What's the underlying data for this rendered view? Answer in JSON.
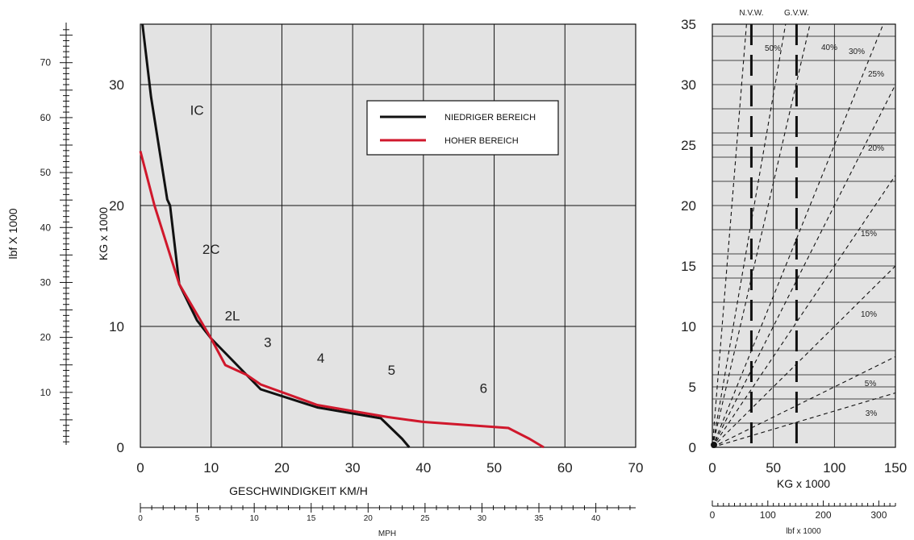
{
  "chart_data": [
    {
      "type": "line",
      "xlabel": "GESCHWINDIGKEIT KM/H",
      "ylabel": "KG x 1000",
      "xlim": [
        0,
        70
      ],
      "ylim": [
        0,
        35
      ],
      "x_ticks": [
        "0",
        "10",
        "20",
        "30",
        "40",
        "50",
        "60",
        "70"
      ],
      "y_ticks": [
        "0",
        "10",
        "20",
        "30"
      ],
      "grid": true,
      "legend_position": "top-right",
      "secondary_y": {
        "label": "lbf X 1000",
        "ticks": [
          "10",
          "20",
          "30",
          "40",
          "50",
          "60",
          "70"
        ],
        "range": [
          0,
          77
        ]
      },
      "secondary_x": {
        "label": "MPH",
        "ticks": [
          "0",
          "5",
          "10",
          "15",
          "20",
          "25",
          "30",
          "35",
          "40"
        ],
        "range": [
          0,
          43.5
        ]
      },
      "region_labels": [
        {
          "text": "IC",
          "x": 8,
          "y": 27.5
        },
        {
          "text": "2C",
          "x": 10,
          "y": 16
        },
        {
          "text": "2L",
          "x": 13,
          "y": 10.5
        },
        {
          "text": "3",
          "x": 18,
          "y": 8.3
        },
        {
          "text": "4",
          "x": 25.5,
          "y": 7
        },
        {
          "text": "5",
          "x": 35.5,
          "y": 6
        },
        {
          "text": "6",
          "x": 48.5,
          "y": 4.5
        }
      ],
      "series": [
        {
          "name": "NIEDRIGER BEREICH",
          "color": "#111111",
          "x": [
            0.3,
            1.5,
            3.8,
            4.2,
            5.5,
            8,
            10,
            12,
            17,
            25,
            34,
            37,
            38
          ],
          "y": [
            35,
            29,
            20.5,
            20,
            13.5,
            10.5,
            9,
            7.8,
            4.8,
            3.3,
            2.4,
            0.7,
            0
          ]
        },
        {
          "name": "HOHER BEREICH",
          "color": "#d0182c",
          "x": [
            0,
            2,
            5.5,
            7,
            10,
            12,
            15,
            17,
            25,
            35,
            40,
            52,
            55,
            57
          ],
          "y": [
            24.5,
            20,
            13.5,
            12,
            9,
            6.8,
            6,
            5.2,
            3.5,
            2.5,
            2.1,
            1.6,
            0.7,
            0
          ]
        }
      ]
    },
    {
      "type": "line",
      "xlabel": "KG x 1000",
      "ylabel": "",
      "xlim": [
        0,
        150
      ],
      "ylim": [
        0,
        35
      ],
      "x_ticks": [
        "0",
        "50",
        "100",
        "150"
      ],
      "y_ticks": [
        "0",
        "5",
        "10",
        "15",
        "20",
        "25",
        "30",
        "35"
      ],
      "secondary_x": {
        "label": "lbf x 1000",
        "ticks": [
          "0",
          "100",
          "200",
          "300"
        ],
        "range": [
          0,
          330
        ]
      },
      "vertical_markers": [
        {
          "label": "N.V.W.",
          "x": 32
        },
        {
          "label": "G.V.W.",
          "x": 69
        }
      ],
      "grade_lines": [
        {
          "label": "50%",
          "end_x": 28,
          "end_y": 35
        },
        {
          "label": "40%",
          "end_x": 60,
          "end_y": 35
        },
        {
          "label": "30%",
          "end_x": 80,
          "end_y": 35
        },
        {
          "label": "25%",
          "end_x": 140,
          "end_y": 35
        },
        {
          "label": "20%",
          "end_x": 150,
          "end_y": 30
        },
        {
          "label": "15%",
          "end_x": 150,
          "end_y": 22.5
        },
        {
          "label": "10%",
          "end_x": 150,
          "end_y": 15
        },
        {
          "label": "5%",
          "end_x": 150,
          "end_y": 7.5
        },
        {
          "label": "3%",
          "end_x": 150,
          "end_y": 4.5
        }
      ]
    }
  ]
}
